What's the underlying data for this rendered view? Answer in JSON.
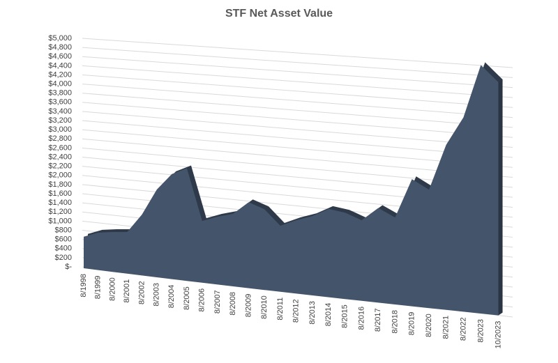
{
  "chart_data": {
    "type": "area3d",
    "title": "STF Net Asset Value",
    "categories": [
      "8/1998",
      "8/1999",
      "8/2000",
      "8/2001",
      "8/2002",
      "8/2003",
      "8/2004",
      "8/2005",
      "8/2006",
      "8/2007",
      "8/2008",
      "8/2009",
      "8/2010",
      "8/2011",
      "8/2012",
      "8/2013",
      "8/2014",
      "8/2015",
      "8/2016",
      "8/2017",
      "8/2018",
      "8/2019",
      "8/2020",
      "8/2021",
      "8/2022",
      "8/2023",
      "10/2023"
    ],
    "values": [
      690,
      810,
      855,
      885,
      1280,
      1825,
      2165,
      2300,
      1250,
      1360,
      1440,
      1690,
      1575,
      1275,
      1405,
      1505,
      1660,
      1610,
      1490,
      1735,
      1580,
      2290,
      2115,
      2925,
      3415,
      4330,
      4030
    ],
    "color": "#44546a",
    "ylim": [
      0,
      5000
    ],
    "yticks": [
      {
        "value": 0,
        "label": "$-"
      },
      {
        "value": 200,
        "label": "$200"
      },
      {
        "value": 400,
        "label": "$400"
      },
      {
        "value": 600,
        "label": "$600"
      },
      {
        "value": 800,
        "label": "$800"
      },
      {
        "value": 1000,
        "label": "$1,000"
      },
      {
        "value": 1200,
        "label": "$1,200"
      },
      {
        "value": 1400,
        "label": "$1,400"
      },
      {
        "value": 1600,
        "label": "$1,600"
      },
      {
        "value": 1800,
        "label": "$1,800"
      },
      {
        "value": 2000,
        "label": "$2,000"
      },
      {
        "value": 2200,
        "label": "$2,200"
      },
      {
        "value": 2400,
        "label": "$2,400"
      },
      {
        "value": 2600,
        "label": "$2,600"
      },
      {
        "value": 2800,
        "label": "$2,800"
      },
      {
        "value": 3000,
        "label": "$3,000"
      },
      {
        "value": 3200,
        "label": "$3,200"
      },
      {
        "value": 3400,
        "label": "$3,400"
      },
      {
        "value": 3600,
        "label": "$3,600"
      },
      {
        "value": 3800,
        "label": "$3,800"
      },
      {
        "value": 4000,
        "label": "$4,000"
      },
      {
        "value": 4200,
        "label": "$4,200"
      },
      {
        "value": 4400,
        "label": "$4,400"
      },
      {
        "value": 4600,
        "label": "$4,600"
      },
      {
        "value": 4800,
        "label": "$4,800"
      },
      {
        "value": 5000,
        "label": "$5,000"
      }
    ],
    "grid": true
  }
}
